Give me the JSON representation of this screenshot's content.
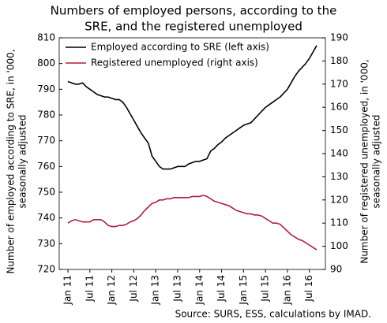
{
  "chart_data": {
    "type": "line",
    "title": [
      "Numbers of employed persons, according to the",
      "SRE, and the registered unemployed"
    ],
    "ylabel": [
      "Number of employed according to SRE, in '000,",
      "seasonally adjusted"
    ],
    "y2label": [
      "Number of registered unemployed, in '000,",
      "seasonally adjusted"
    ],
    "source": "Source: SURS, ESS, calculations by IMAD.",
    "legend": "upper left",
    "categories": [
      "Jan 11",
      null,
      null,
      null,
      null,
      null,
      "Jul 11",
      null,
      null,
      null,
      null,
      null,
      "Jan 12",
      null,
      null,
      null,
      null,
      null,
      "Jul 12",
      null,
      null,
      null,
      null,
      null,
      "Jan 13",
      null,
      null,
      null,
      null,
      null,
      "Jul 13",
      null,
      null,
      null,
      null,
      null,
      "Jan 14",
      null,
      null,
      null,
      null,
      null,
      "Jul 14",
      null,
      null,
      null,
      null,
      null,
      "Jan 15",
      null,
      null,
      null,
      null,
      null,
      "Jul 15",
      null,
      null,
      null,
      null,
      null,
      "Jan 16",
      null,
      null,
      null,
      null,
      null,
      "Jul 16",
      null,
      null
    ],
    "ylim": [
      720,
      810
    ],
    "yticks": [
      720,
      730,
      740,
      750,
      760,
      770,
      780,
      790,
      800,
      810
    ],
    "y2lim": [
      90,
      190
    ],
    "y2ticks": [
      90,
      100,
      110,
      120,
      130,
      140,
      150,
      160,
      170,
      180,
      190
    ],
    "series": [
      {
        "name": "Employed according to SRE (left axis)",
        "color": "#000000",
        "values": [
          793,
          792.5,
          792,
          792,
          792.5,
          791,
          790,
          789,
          788,
          787.5,
          787,
          787,
          786.5,
          786,
          786,
          785,
          783,
          780.5,
          778,
          775.5,
          773,
          771,
          769,
          764,
          762,
          760,
          759,
          759,
          759,
          759.5,
          760,
          760,
          760,
          761,
          761.5,
          762,
          762,
          762.5,
          763,
          766,
          767,
          768.5,
          769.5,
          771,
          772,
          773,
          774,
          775,
          776,
          776.5,
          777,
          778.5,
          780,
          781.5,
          783,
          784,
          785,
          786,
          787,
          788.5,
          790,
          792.5,
          795,
          797,
          798.5,
          800,
          802,
          804.5,
          807
        ]
      },
      {
        "name": "Registered unemployed (right axis)",
        "color": "#b01e3c",
        "axis": "y2",
        "values": [
          110,
          111,
          111.5,
          111,
          110.5,
          110.5,
          110.5,
          111.5,
          111.5,
          111.5,
          110.5,
          109,
          108.5,
          108.5,
          109,
          109,
          109.5,
          110.5,
          111,
          112,
          113.5,
          115.5,
          117,
          118.5,
          119,
          120,
          120,
          120.5,
          120.5,
          121,
          121,
          121,
          121,
          121,
          121.5,
          121.5,
          121.5,
          122,
          121.5,
          120.5,
          119.5,
          119,
          118.5,
          118,
          117.5,
          116.5,
          115.5,
          115,
          114.5,
          114,
          114,
          113.5,
          113.5,
          113,
          112,
          111,
          110,
          110,
          109.5,
          108,
          106.5,
          105,
          104,
          103,
          102.5,
          101.5,
          100.5,
          99.5,
          98.5
        ]
      }
    ]
  }
}
